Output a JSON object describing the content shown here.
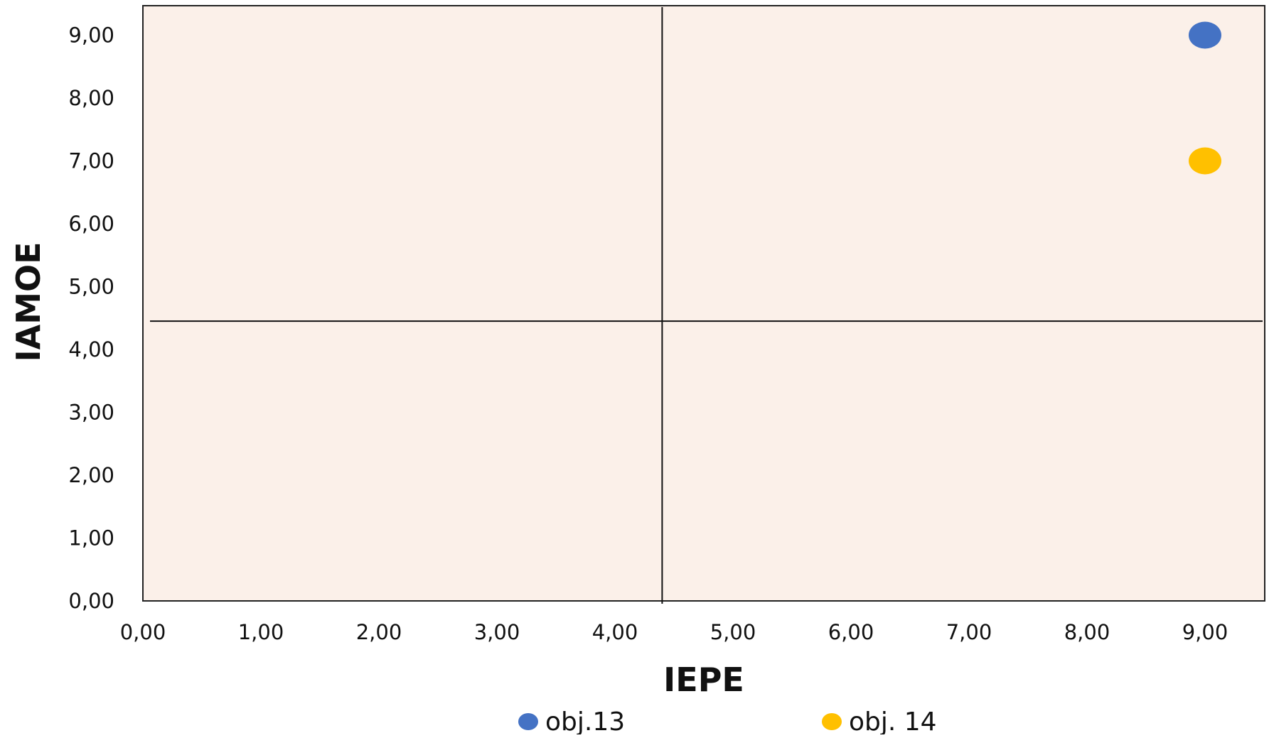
{
  "chart_data": {
    "type": "scatter",
    "xlabel": "IEPE",
    "ylabel": "IAMOE",
    "xlim": [
      0,
      9.5
    ],
    "ylim": [
      0,
      9.5
    ],
    "x_ticks": [
      "0,00",
      "1,00",
      "2,00",
      "3,00",
      "4,00",
      "5,00",
      "6,00",
      "7,00",
      "8,00",
      "9,00"
    ],
    "y_ticks": [
      "0,00",
      "1,00",
      "2,00",
      "3,00",
      "4,00",
      "5,00",
      "6,00",
      "7,00",
      "8,00",
      "9,00"
    ],
    "reference_lines": {
      "x": 4.4,
      "y": 4.45
    },
    "grid": false,
    "legend_position": "bottom",
    "plot_background": "#fbf0e9",
    "series": [
      {
        "name": "obj.13",
        "color": "#4472c4",
        "points": [
          {
            "x": 9.0,
            "y": 9.0
          }
        ]
      },
      {
        "name": "obj. 14",
        "color": "#ffc000",
        "points": [
          {
            "x": 9.0,
            "y": 7.0
          }
        ]
      }
    ]
  }
}
